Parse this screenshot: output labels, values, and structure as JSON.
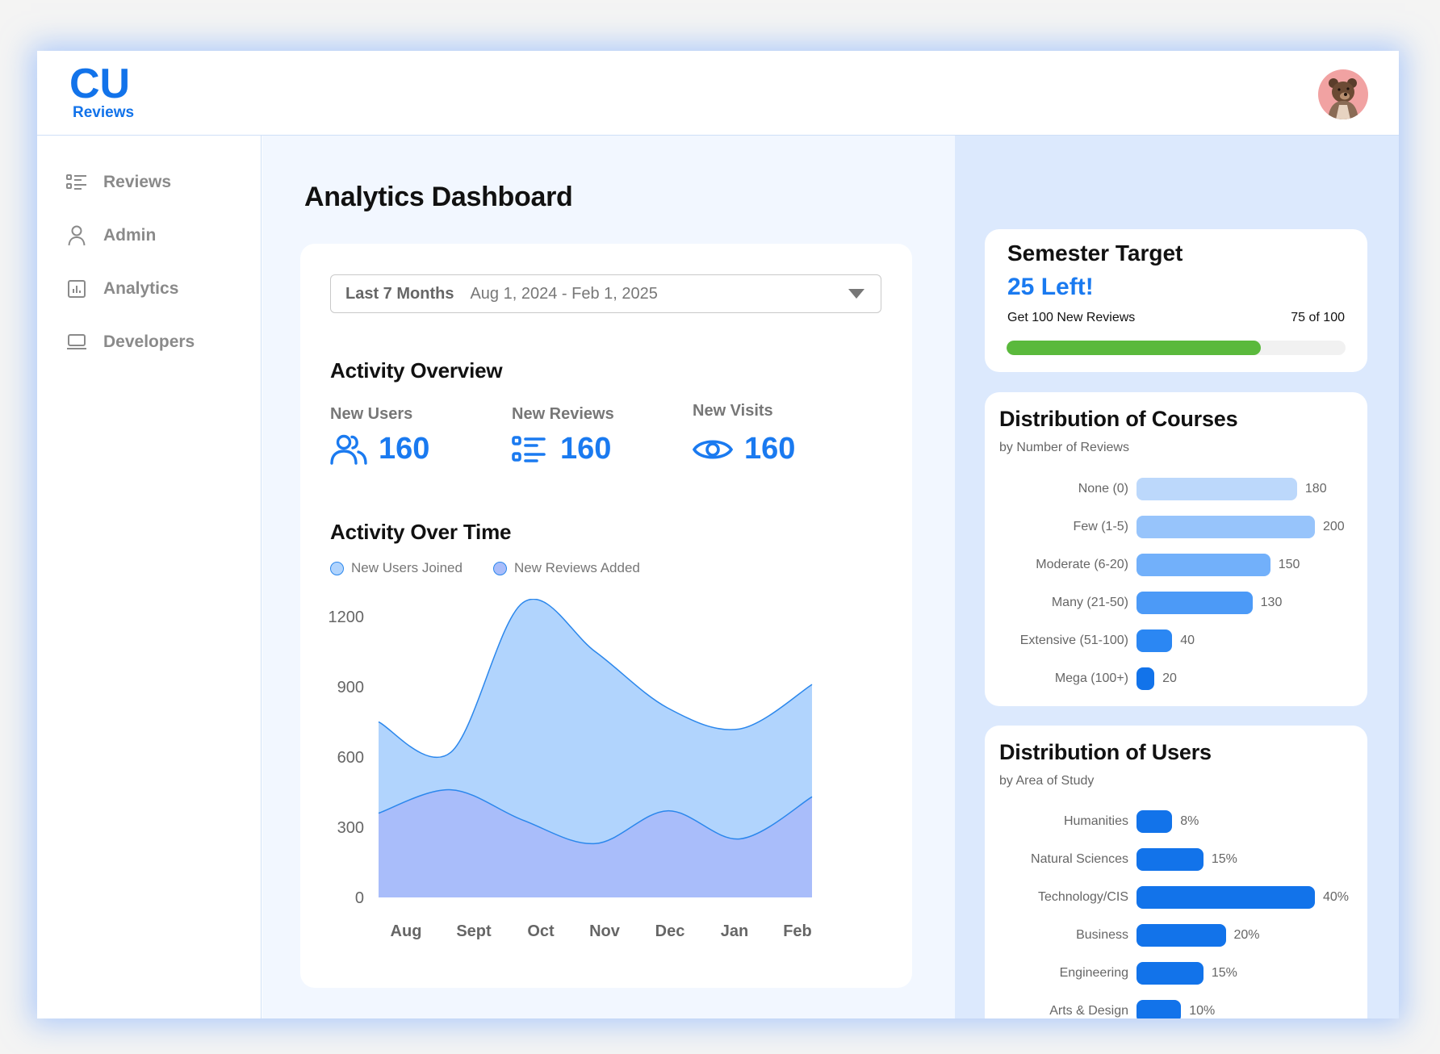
{
  "app": {
    "logo_text": "CU",
    "logo_subtitle": "Reviews"
  },
  "sidebar": {
    "items": [
      {
        "label": "Reviews",
        "icon": "list-icon"
      },
      {
        "label": "Admin",
        "icon": "user-icon"
      },
      {
        "label": "Analytics",
        "icon": "chart-icon"
      },
      {
        "label": "Developers",
        "icon": "laptop-icon"
      }
    ]
  },
  "main": {
    "title": "Analytics Dashboard",
    "date_filter": {
      "label": "Last 7 Months",
      "range": "Aug 1, 2024 - Feb 1, 2025"
    },
    "overview": {
      "title": "Activity Overview",
      "stats": [
        {
          "label": "New Users",
          "value": "160",
          "icon": "users-icon"
        },
        {
          "label": "New Reviews",
          "value": "160",
          "icon": "list-icon"
        },
        {
          "label": "New Visits",
          "value": "160",
          "icon": "eye-icon"
        }
      ]
    },
    "activity_chart_title": "Activity Over Time"
  },
  "colors": {
    "accent": "#1a7af0",
    "progress": "#5ab93c",
    "area_users": "#b1d4fd",
    "area_reviews": "#a9bdfa",
    "line": "#2b87ec"
  },
  "target": {
    "title": "Semester Target",
    "remaining": "25 Left!",
    "goal": "Get 100 New Reviews",
    "progress_text": "75 of 100",
    "progress_value": 75,
    "progress_max": 100
  },
  "chart_data": [
    {
      "type": "area",
      "x": [
        "Aug",
        "Sept",
        "Oct",
        "Nov",
        "Dec",
        "Jan",
        "Feb"
      ],
      "ylim": [
        0,
        1200
      ],
      "yticks": [
        1200,
        900,
        600,
        300,
        0
      ],
      "grid": false,
      "legend": "top-left",
      "series": [
        {
          "name": "New Users Joined",
          "values": [
            750,
            620,
            1260,
            1050,
            810,
            720,
            910
          ]
        },
        {
          "name": "New Reviews Added",
          "values": [
            360,
            460,
            330,
            230,
            370,
            250,
            430
          ]
        }
      ]
    },
    {
      "type": "bar",
      "orientation": "horizontal",
      "title": "Distribution of Courses",
      "subtitle": "by Number of Reviews",
      "categories": [
        "None (0)",
        "Few (1-5)",
        "Moderate (6-20)",
        "Many (21-50)",
        "Extensive (51-100)",
        "Mega (100+)"
      ],
      "values": [
        180,
        200,
        150,
        130,
        40,
        20
      ],
      "labels": [
        "180",
        "200",
        "150",
        "130",
        "40",
        "20"
      ],
      "colors": [
        "#bcd8fb",
        "#97c4fb",
        "#72b0fa",
        "#4c9af7",
        "#2b87f3",
        "#1273ea"
      ],
      "xlim": [
        0,
        200
      ]
    },
    {
      "type": "bar",
      "orientation": "horizontal",
      "title": "Distribution of Users",
      "subtitle": "by Area of Study",
      "categories": [
        "Humanities",
        "Natural Sciences",
        "Technology/CIS",
        "Business",
        "Engineering",
        "Arts & Design"
      ],
      "values": [
        8,
        15,
        40,
        20,
        15,
        10
      ],
      "labels": [
        "8%",
        "15%",
        "40%",
        "20%",
        "15%",
        "10%"
      ],
      "colors": [
        "#1273ea",
        "#1273ea",
        "#1273ea",
        "#1273ea",
        "#1273ea",
        "#1273ea"
      ],
      "xlim": [
        0,
        40
      ]
    }
  ]
}
